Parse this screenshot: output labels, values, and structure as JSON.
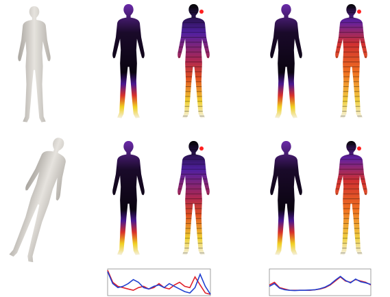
{
  "chart_data": [
    {
      "type": "line",
      "x": [
        0,
        1,
        2,
        3,
        4,
        5,
        6,
        7,
        8,
        9,
        10,
        11,
        12,
        13,
        14,
        15,
        16,
        17,
        18,
        19,
        20
      ],
      "xlim": [
        0,
        20
      ],
      "ylim": [
        0,
        1
      ],
      "series": [
        {
          "name": null,
          "color": "#e0202a",
          "values": [
            0.95,
            0.5,
            0.35,
            0.3,
            0.25,
            0.2,
            0.3,
            0.35,
            0.25,
            0.3,
            0.45,
            0.3,
            0.25,
            0.4,
            0.5,
            0.35,
            0.3,
            0.7,
            0.4,
            0.1,
            0.05
          ]
        },
        {
          "name": null,
          "color": "#1f3fd0",
          "values": [
            0.9,
            0.45,
            0.3,
            0.35,
            0.45,
            0.6,
            0.5,
            0.3,
            0.25,
            0.35,
            0.4,
            0.3,
            0.45,
            0.35,
            0.25,
            0.15,
            0.1,
            0.3,
            0.8,
            0.35,
            0.05
          ]
        }
      ]
    },
    {
      "type": "line",
      "x": [
        0,
        1,
        2,
        3,
        4,
        5,
        6,
        7,
        8,
        9,
        10,
        11,
        12,
        13,
        14,
        15,
        16,
        17,
        18,
        19,
        20
      ],
      "xlim": [
        0,
        20
      ],
      "ylim": [
        0,
        1
      ],
      "series": [
        {
          "name": null,
          "color": "#e0202a",
          "values": [
            0.4,
            0.5,
            0.3,
            0.25,
            0.2,
            0.2,
            0.2,
            0.2,
            0.2,
            0.22,
            0.25,
            0.3,
            0.4,
            0.55,
            0.7,
            0.55,
            0.5,
            0.6,
            0.55,
            0.5,
            0.4
          ]
        },
        {
          "name": null,
          "color": "#1f3fd0",
          "values": [
            0.35,
            0.45,
            0.28,
            0.22,
            0.2,
            0.19,
            0.2,
            0.2,
            0.21,
            0.22,
            0.26,
            0.32,
            0.42,
            0.58,
            0.72,
            0.57,
            0.48,
            0.62,
            0.52,
            0.48,
            0.42
          ]
        }
      ]
    }
  ]
}
